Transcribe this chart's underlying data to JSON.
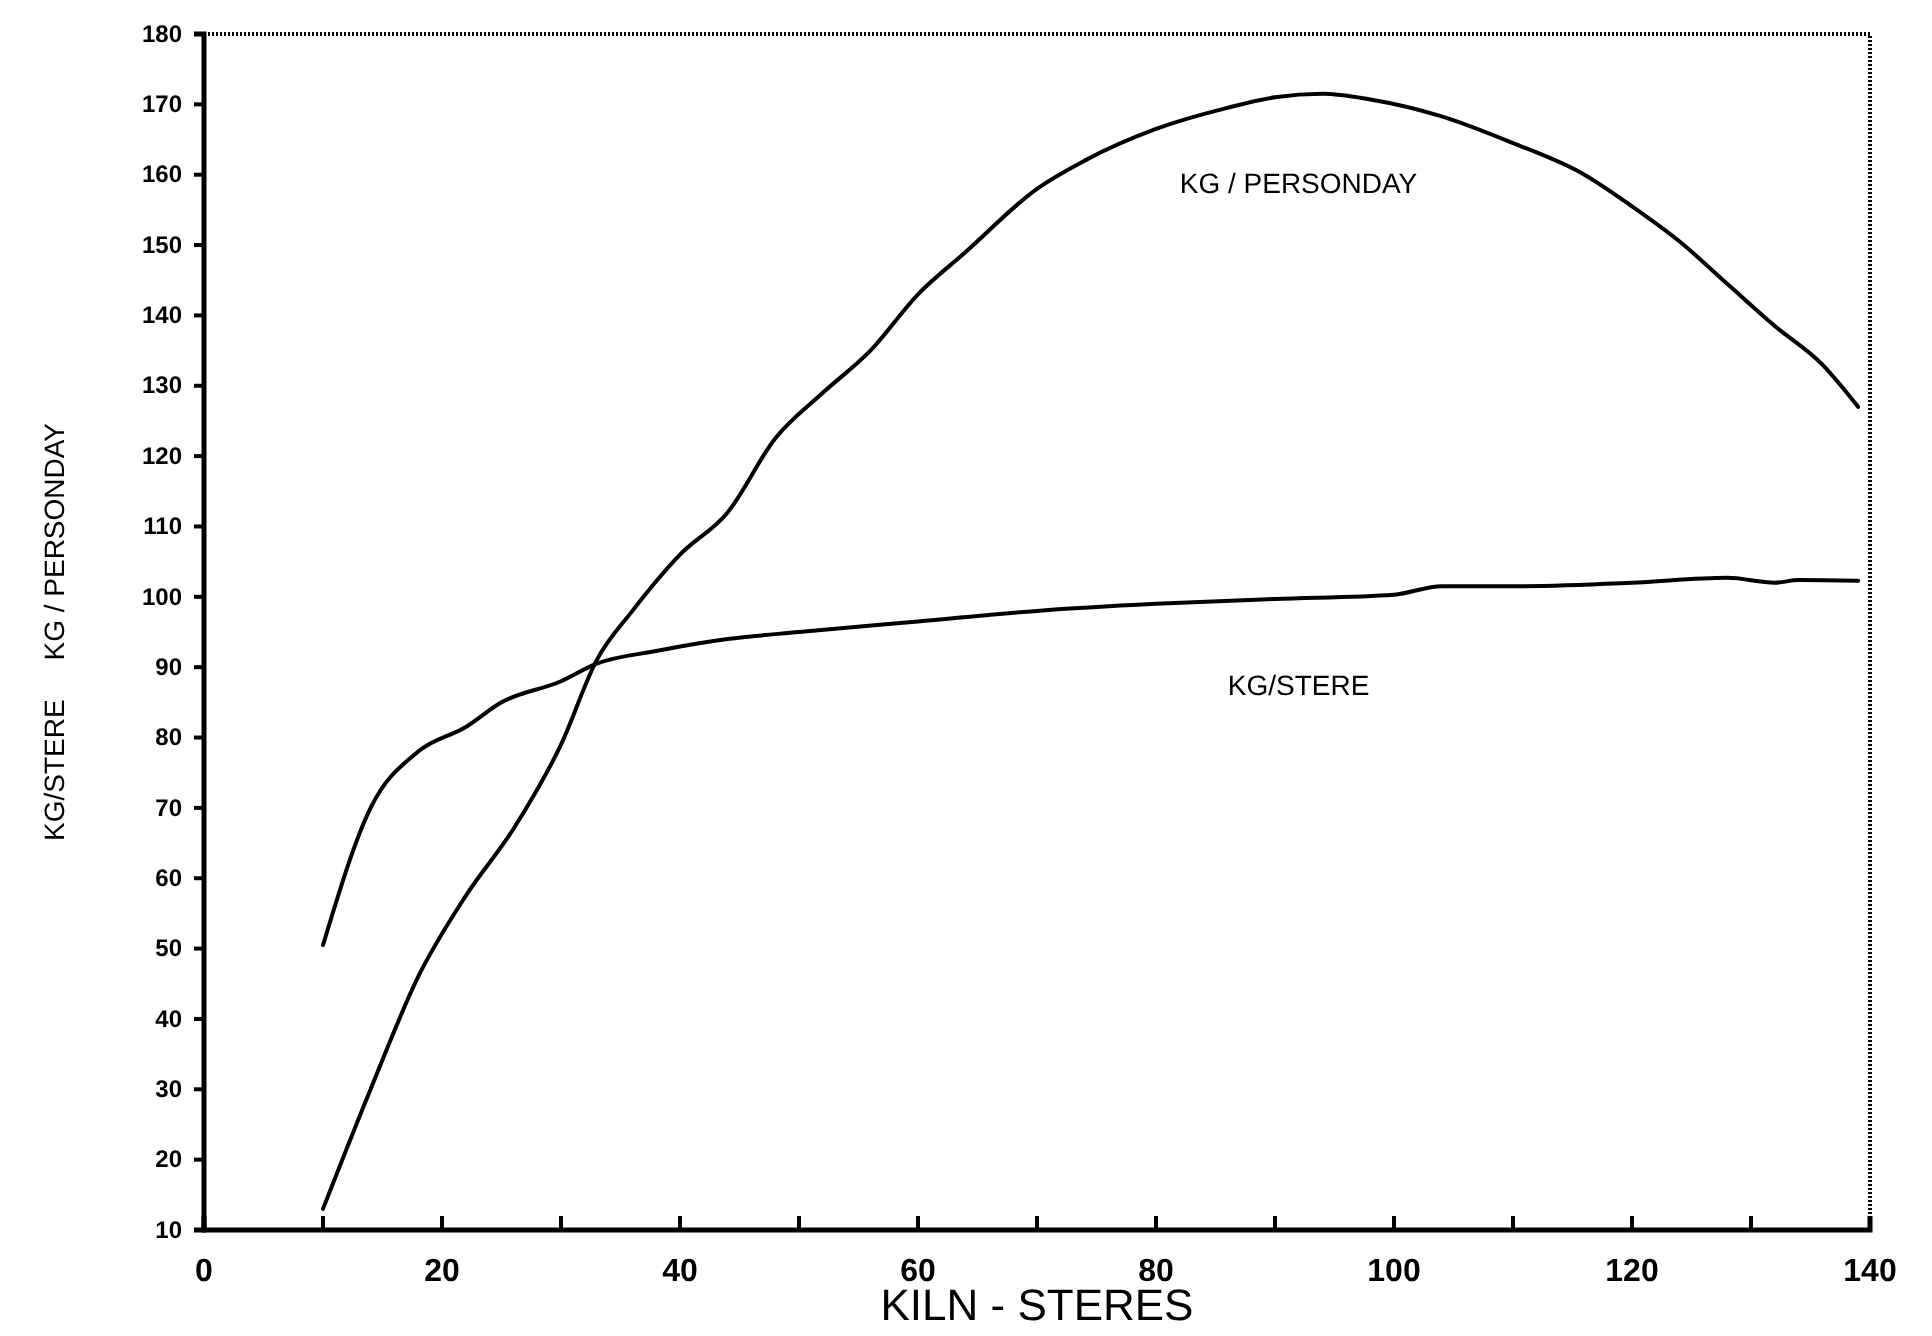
{
  "chart_data": {
    "type": "line",
    "xlabel": "KILN - STERES",
    "ylabel": "KG/STERE     KG / PERSONDAY",
    "xlim": [
      0,
      140
    ],
    "ylim": [
      10,
      180
    ],
    "xticks": [
      0,
      {
        "value": 10,
        "label": null
      },
      20,
      {
        "value": 30,
        "label": null
      },
      40,
      {
        "value": 50,
        "label": null
      },
      60,
      {
        "value": 70,
        "label": null
      },
      80,
      {
        "value": 90,
        "label": null
      },
      100,
      {
        "value": 110,
        "label": null
      },
      120,
      {
        "value": 130,
        "label": null
      },
      140
    ],
    "yticks": [
      10,
      20,
      30,
      40,
      50,
      60,
      70,
      80,
      90,
      100,
      110,
      120,
      130,
      140,
      150,
      160,
      170,
      180
    ],
    "grid": false,
    "marker": "none",
    "line_style": "solid",
    "series": [
      {
        "name": "KG/STERE",
        "color": "#000000",
        "x": [
          10,
          14,
          18,
          22,
          25,
          30,
          33,
          38,
          44,
          50,
          60,
          70,
          80,
          90,
          100,
          104,
          110,
          120,
          128,
          132,
          134,
          139
        ],
        "values": [
          50.5,
          70,
          78,
          81.5,
          85,
          88,
          90.5,
          92.3,
          94,
          95,
          96.5,
          98,
          99,
          99.7,
          100.3,
          101.5,
          101.5,
          102,
          102.7,
          102,
          102.4,
          102.3
        ]
      },
      {
        "name": "KG / PERSONDAY",
        "color": "#000000",
        "x": [
          10,
          14,
          18,
          22,
          26,
          30,
          33,
          36,
          40,
          44,
          48,
          52,
          56,
          60,
          64,
          70,
          74,
          80,
          86,
          90,
          94,
          98,
          104,
          110,
          116,
          120,
          124,
          128,
          132,
          136,
          139
        ],
        "values": [
          13,
          30,
          46,
          57.5,
          67,
          79,
          91,
          98,
          106,
          112,
          122.5,
          129,
          135,
          143,
          149,
          158,
          162,
          166.5,
          169.5,
          171,
          171.5,
          170.7,
          168.3,
          164.5,
          160,
          155.5,
          150.5,
          144.5,
          138.5,
          133,
          127
        ]
      }
    ]
  }
}
